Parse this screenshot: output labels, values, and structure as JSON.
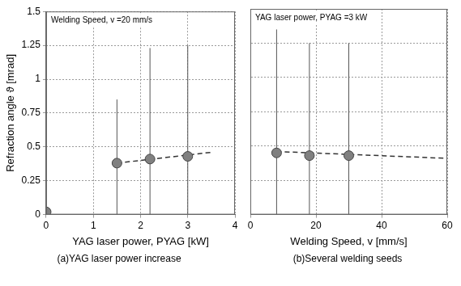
{
  "chart_data": [
    {
      "type": "scatter",
      "title": "(a)YAG laser power increase",
      "x_label": "YAG laser power, PYAG [kW]",
      "y_label": "Refraction angle ϑ [mrad]",
      "annotation": "Welding Speed, v =20 mm/s",
      "xlim": [
        0,
        4
      ],
      "xticks": [
        0,
        1,
        2,
        3,
        4
      ],
      "ylim": [
        0,
        1.5
      ],
      "yticks": [
        0,
        0.25,
        0.5,
        0.75,
        1,
        1.25,
        1.5
      ],
      "grid": true,
      "series": [
        {
          "type": "scatter",
          "color": "#808080",
          "marker": "circle",
          "x": [
            0,
            1.5,
            2.2,
            3
          ],
          "values": [
            0.02,
            0.38,
            0.41,
            0.43
          ],
          "error_low": [
            null,
            0,
            0,
            0
          ],
          "error_high": [
            null,
            0.85,
            1.23,
            1.25
          ]
        },
        {
          "type": "line",
          "line_style": "dashed",
          "color": "#333333",
          "x": [
            1.5,
            3.5
          ],
          "values": [
            0.38,
            0.46
          ]
        }
      ]
    },
    {
      "type": "scatter",
      "title": "(b)Several welding seeds",
      "x_label": "Welding Speed, v [mm/s]",
      "annotation": "YAG laser power, PYAG =3 kW",
      "xlim": [
        0,
        60
      ],
      "xticks": [
        0,
        20,
        40,
        60
      ],
      "ylim": [
        0,
        1.5
      ],
      "yticks": [
        0,
        0.25,
        0.5,
        0.75,
        1,
        1.25,
        1.5
      ],
      "grid": true,
      "tick_labels": "x",
      "series": [
        {
          "type": "scatter",
          "color": "#808080",
          "marker": "circle",
          "x": [
            8,
            18,
            30
          ],
          "values": [
            0.45,
            0.43,
            0.43
          ],
          "error_low": [
            0,
            0,
            0
          ],
          "error_high": [
            1.35,
            1.25,
            1.25
          ]
        },
        {
          "type": "line",
          "line_style": "dashed",
          "color": "#333333",
          "x": [
            8,
            60
          ],
          "values": [
            0.46,
            0.41
          ]
        }
      ]
    }
  ]
}
